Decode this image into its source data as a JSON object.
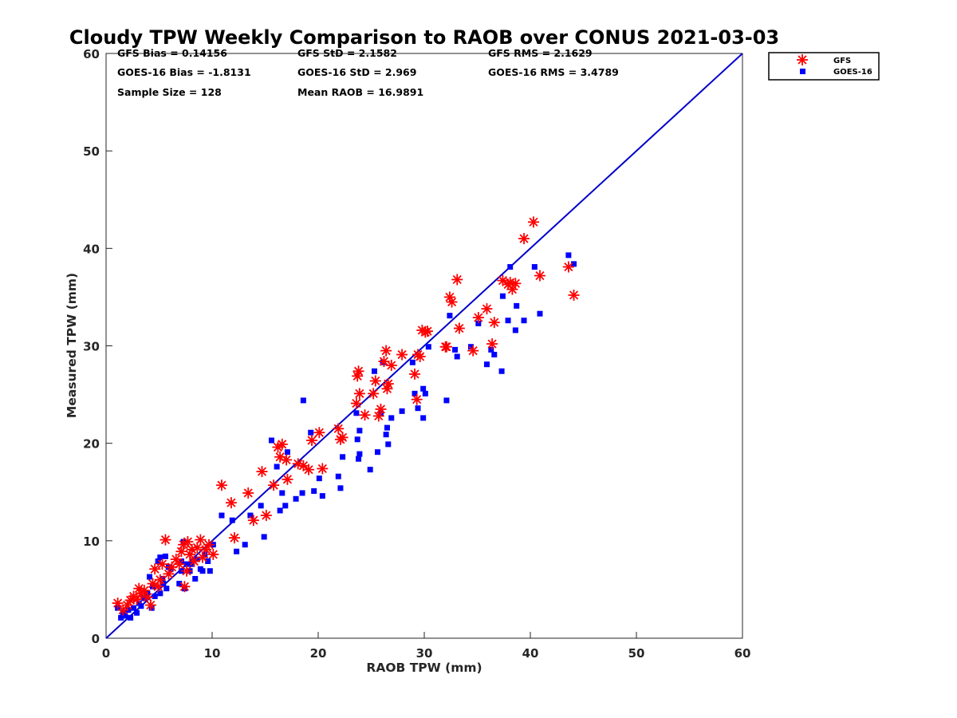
{
  "chart_data": {
    "type": "scatter",
    "title": "Cloudy TPW Weekly Comparison to RAOB over CONUS 2021-03-03",
    "xlabel": "RAOB TPW (mm)",
    "ylabel": "Measured TPW (mm)",
    "xlim": [
      0,
      60
    ],
    "ylim": [
      0,
      60
    ],
    "xticks": [
      "0",
      "10",
      "20",
      "30",
      "40",
      "50",
      "60"
    ],
    "yticks": [
      "0",
      "10",
      "20",
      "30",
      "40",
      "50",
      "60"
    ],
    "grid": false,
    "legend_position": "top-right, outside plot area",
    "reference_line": {
      "x": [
        0,
        60
      ],
      "y": [
        0,
        60
      ],
      "color": "#0000cc"
    },
    "stats": [
      [
        "GFS Bias = 0.14156",
        "GFS StD = 2.1582",
        "GFS RMS = 2.1629"
      ],
      [
        "GOES-16 Bias = -1.8131",
        "GOES-16 StD = 2.969",
        "GOES-16 RMS = 3.4789"
      ],
      [
        "Sample Size = 128",
        "Mean RAOB = 16.9891",
        ""
      ]
    ],
    "series": [
      {
        "name": "GFS",
        "marker": "asterisk",
        "color": "#ff0000",
        "points": [
          [
            1.1,
            3.6
          ],
          [
            1.6,
            2.9
          ],
          [
            2.0,
            3.4
          ],
          [
            2.3,
            3.9
          ],
          [
            2.6,
            4.3
          ],
          [
            2.9,
            4.0
          ],
          [
            3.1,
            5.1
          ],
          [
            3.3,
            4.6
          ],
          [
            3.6,
            4.9
          ],
          [
            3.9,
            4.2
          ],
          [
            4.2,
            3.4
          ],
          [
            4.4,
            5.6
          ],
          [
            4.6,
            7.1
          ],
          [
            4.9,
            5.3
          ],
          [
            5.1,
            6.0
          ],
          [
            5.3,
            7.6
          ],
          [
            5.6,
            10.1
          ],
          [
            5.9,
            6.6
          ],
          [
            6.2,
            7.3
          ],
          [
            6.6,
            8.1
          ],
          [
            6.9,
            7.6
          ],
          [
            7.1,
            8.9
          ],
          [
            7.3,
            9.6
          ],
          [
            7.4,
            5.3
          ],
          [
            7.6,
            6.9
          ],
          [
            7.7,
            9.9
          ],
          [
            7.9,
            8.6
          ],
          [
            8.1,
            9.1
          ],
          [
            8.3,
            7.9
          ],
          [
            8.6,
            9.3
          ],
          [
            8.9,
            10.1
          ],
          [
            9.1,
            8.3
          ],
          [
            9.4,
            9.1
          ],
          [
            9.7,
            9.6
          ],
          [
            10.1,
            8.6
          ],
          [
            10.9,
            15.7
          ],
          [
            11.8,
            13.9
          ],
          [
            12.1,
            10.3
          ],
          [
            13.4,
            14.9
          ],
          [
            13.9,
            12.1
          ],
          [
            14.7,
            17.1
          ],
          [
            15.1,
            12.6
          ],
          [
            15.8,
            15.7
          ],
          [
            16.2,
            19.6
          ],
          [
            16.4,
            18.6
          ],
          [
            16.6,
            19.9
          ],
          [
            17.1,
            16.3
          ],
          [
            17.0,
            18.3
          ],
          [
            18.1,
            17.9
          ],
          [
            18.6,
            17.7
          ],
          [
            19.1,
            17.3
          ],
          [
            19.4,
            20.3
          ],
          [
            20.1,
            21.1
          ],
          [
            20.4,
            17.4
          ],
          [
            21.9,
            21.5
          ],
          [
            22.1,
            20.4
          ],
          [
            22.3,
            20.6
          ],
          [
            23.6,
            24.1
          ],
          [
            23.7,
            26.9
          ],
          [
            23.8,
            27.4
          ],
          [
            23.9,
            25.1
          ],
          [
            24.4,
            22.9
          ],
          [
            25.2,
            25.1
          ],
          [
            25.4,
            26.4
          ],
          [
            25.7,
            22.8
          ],
          [
            25.9,
            23.5
          ],
          [
            26.2,
            28.4
          ],
          [
            26.4,
            29.5
          ],
          [
            26.5,
            25.6
          ],
          [
            26.6,
            26.1
          ],
          [
            26.9,
            28.0
          ],
          [
            27.9,
            29.1
          ],
          [
            29.1,
            27.1
          ],
          [
            29.3,
            24.5
          ],
          [
            29.4,
            29.1
          ],
          [
            29.6,
            28.9
          ],
          [
            29.8,
            31.6
          ],
          [
            30.1,
            31.4
          ],
          [
            30.3,
            31.5
          ],
          [
            32.1,
            29.9
          ],
          [
            32.4,
            35.0
          ],
          [
            32.6,
            34.5
          ],
          [
            33.1,
            36.8
          ],
          [
            33.3,
            31.8
          ],
          [
            34.6,
            29.5
          ],
          [
            35.1,
            32.9
          ],
          [
            35.9,
            33.8
          ],
          [
            36.4,
            30.2
          ],
          [
            36.6,
            32.4
          ],
          [
            37.4,
            36.7
          ],
          [
            37.9,
            36.3
          ],
          [
            38.1,
            36.5
          ],
          [
            38.3,
            35.8
          ],
          [
            38.6,
            36.4
          ],
          [
            39.4,
            41.0
          ],
          [
            40.3,
            42.7
          ],
          [
            40.9,
            37.2
          ],
          [
            43.6,
            38.1
          ],
          [
            44.1,
            35.2
          ],
          [
            32.0,
            29.9
          ]
        ]
      },
      {
        "name": "GOES-16",
        "marker": "square",
        "color": "#0000ff",
        "points": [
          [
            1.1,
            3.1
          ],
          [
            1.4,
            2.1
          ],
          [
            1.6,
            2.6
          ],
          [
            1.8,
            2.3
          ],
          [
            2.1,
            2.9
          ],
          [
            2.3,
            2.1
          ],
          [
            2.6,
            3.1
          ],
          [
            2.9,
            2.6
          ],
          [
            3.1,
            3.6
          ],
          [
            3.3,
            3.3
          ],
          [
            3.6,
            4.1
          ],
          [
            3.9,
            4.6
          ],
          [
            4.1,
            6.3
          ],
          [
            4.3,
            3.1
          ],
          [
            4.4,
            5.3
          ],
          [
            4.6,
            4.3
          ],
          [
            4.9,
            7.9
          ],
          [
            5.1,
            4.6
          ],
          [
            5.1,
            8.3
          ],
          [
            5.3,
            6.1
          ],
          [
            5.4,
            5.6
          ],
          [
            5.6,
            8.4
          ],
          [
            5.7,
            5.1
          ],
          [
            5.9,
            7.3
          ],
          [
            6.1,
            7.1
          ],
          [
            6.9,
            5.6
          ],
          [
            7.1,
            6.9
          ],
          [
            7.1,
            7.9
          ],
          [
            7.3,
            9.9
          ],
          [
            7.4,
            5.1
          ],
          [
            7.6,
            7.6
          ],
          [
            7.9,
            6.9
          ],
          [
            8.1,
            7.6
          ],
          [
            8.4,
            6.1
          ],
          [
            8.6,
            8.1
          ],
          [
            8.9,
            7.1
          ],
          [
            9.1,
            6.9
          ],
          [
            9.3,
            8.6
          ],
          [
            9.6,
            7.9
          ],
          [
            9.8,
            6.9
          ],
          [
            10.1,
            9.6
          ],
          [
            10.9,
            12.6
          ],
          [
            11.9,
            12.1
          ],
          [
            12.3,
            8.9
          ],
          [
            13.1,
            9.6
          ],
          [
            13.6,
            12.6
          ],
          [
            14.6,
            13.6
          ],
          [
            14.9,
            10.4
          ],
          [
            15.6,
            20.3
          ],
          [
            16.1,
            17.6
          ],
          [
            16.4,
            13.1
          ],
          [
            16.6,
            14.9
          ],
          [
            16.9,
            13.6
          ],
          [
            17.1,
            19.1
          ],
          [
            17.9,
            14.3
          ],
          [
            18.5,
            14.9
          ],
          [
            18.6,
            24.4
          ],
          [
            19.3,
            21.1
          ],
          [
            19.6,
            15.1
          ],
          [
            20.1,
            16.4
          ],
          [
            20.4,
            14.6
          ],
          [
            21.9,
            16.6
          ],
          [
            22.1,
            15.4
          ],
          [
            22.3,
            18.6
          ],
          [
            23.6,
            23.1
          ],
          [
            23.7,
            20.4
          ],
          [
            23.9,
            21.3
          ],
          [
            23.9,
            18.9
          ],
          [
            23.8,
            18.4
          ],
          [
            24.9,
            17.3
          ],
          [
            25.3,
            27.4
          ],
          [
            25.6,
            19.1
          ],
          [
            25.9,
            23.1
          ],
          [
            26.1,
            28.3
          ],
          [
            26.5,
            21.6
          ],
          [
            26.4,
            20.9
          ],
          [
            26.6,
            19.9
          ],
          [
            26.9,
            22.6
          ],
          [
            27.9,
            23.3
          ],
          [
            28.9,
            28.3
          ],
          [
            29.1,
            25.1
          ],
          [
            29.4,
            23.6
          ],
          [
            29.9,
            25.6
          ],
          [
            29.9,
            22.6
          ],
          [
            30.1,
            25.1
          ],
          [
            30.4,
            29.9
          ],
          [
            32.1,
            24.4
          ],
          [
            32.4,
            33.1
          ],
          [
            32.9,
            29.6
          ],
          [
            33.1,
            28.9
          ],
          [
            34.4,
            29.9
          ],
          [
            35.1,
            32.3
          ],
          [
            35.9,
            28.1
          ],
          [
            36.3,
            29.6
          ],
          [
            36.6,
            29.1
          ],
          [
            37.3,
            27.4
          ],
          [
            37.4,
            35.1
          ],
          [
            37.9,
            32.6
          ],
          [
            38.1,
            38.1
          ],
          [
            38.6,
            31.6
          ],
          [
            38.7,
            34.1
          ],
          [
            39.4,
            32.6
          ],
          [
            40.4,
            38.1
          ],
          [
            40.9,
            33.3
          ],
          [
            43.6,
            39.3
          ],
          [
            44.1,
            38.4
          ]
        ]
      }
    ]
  }
}
